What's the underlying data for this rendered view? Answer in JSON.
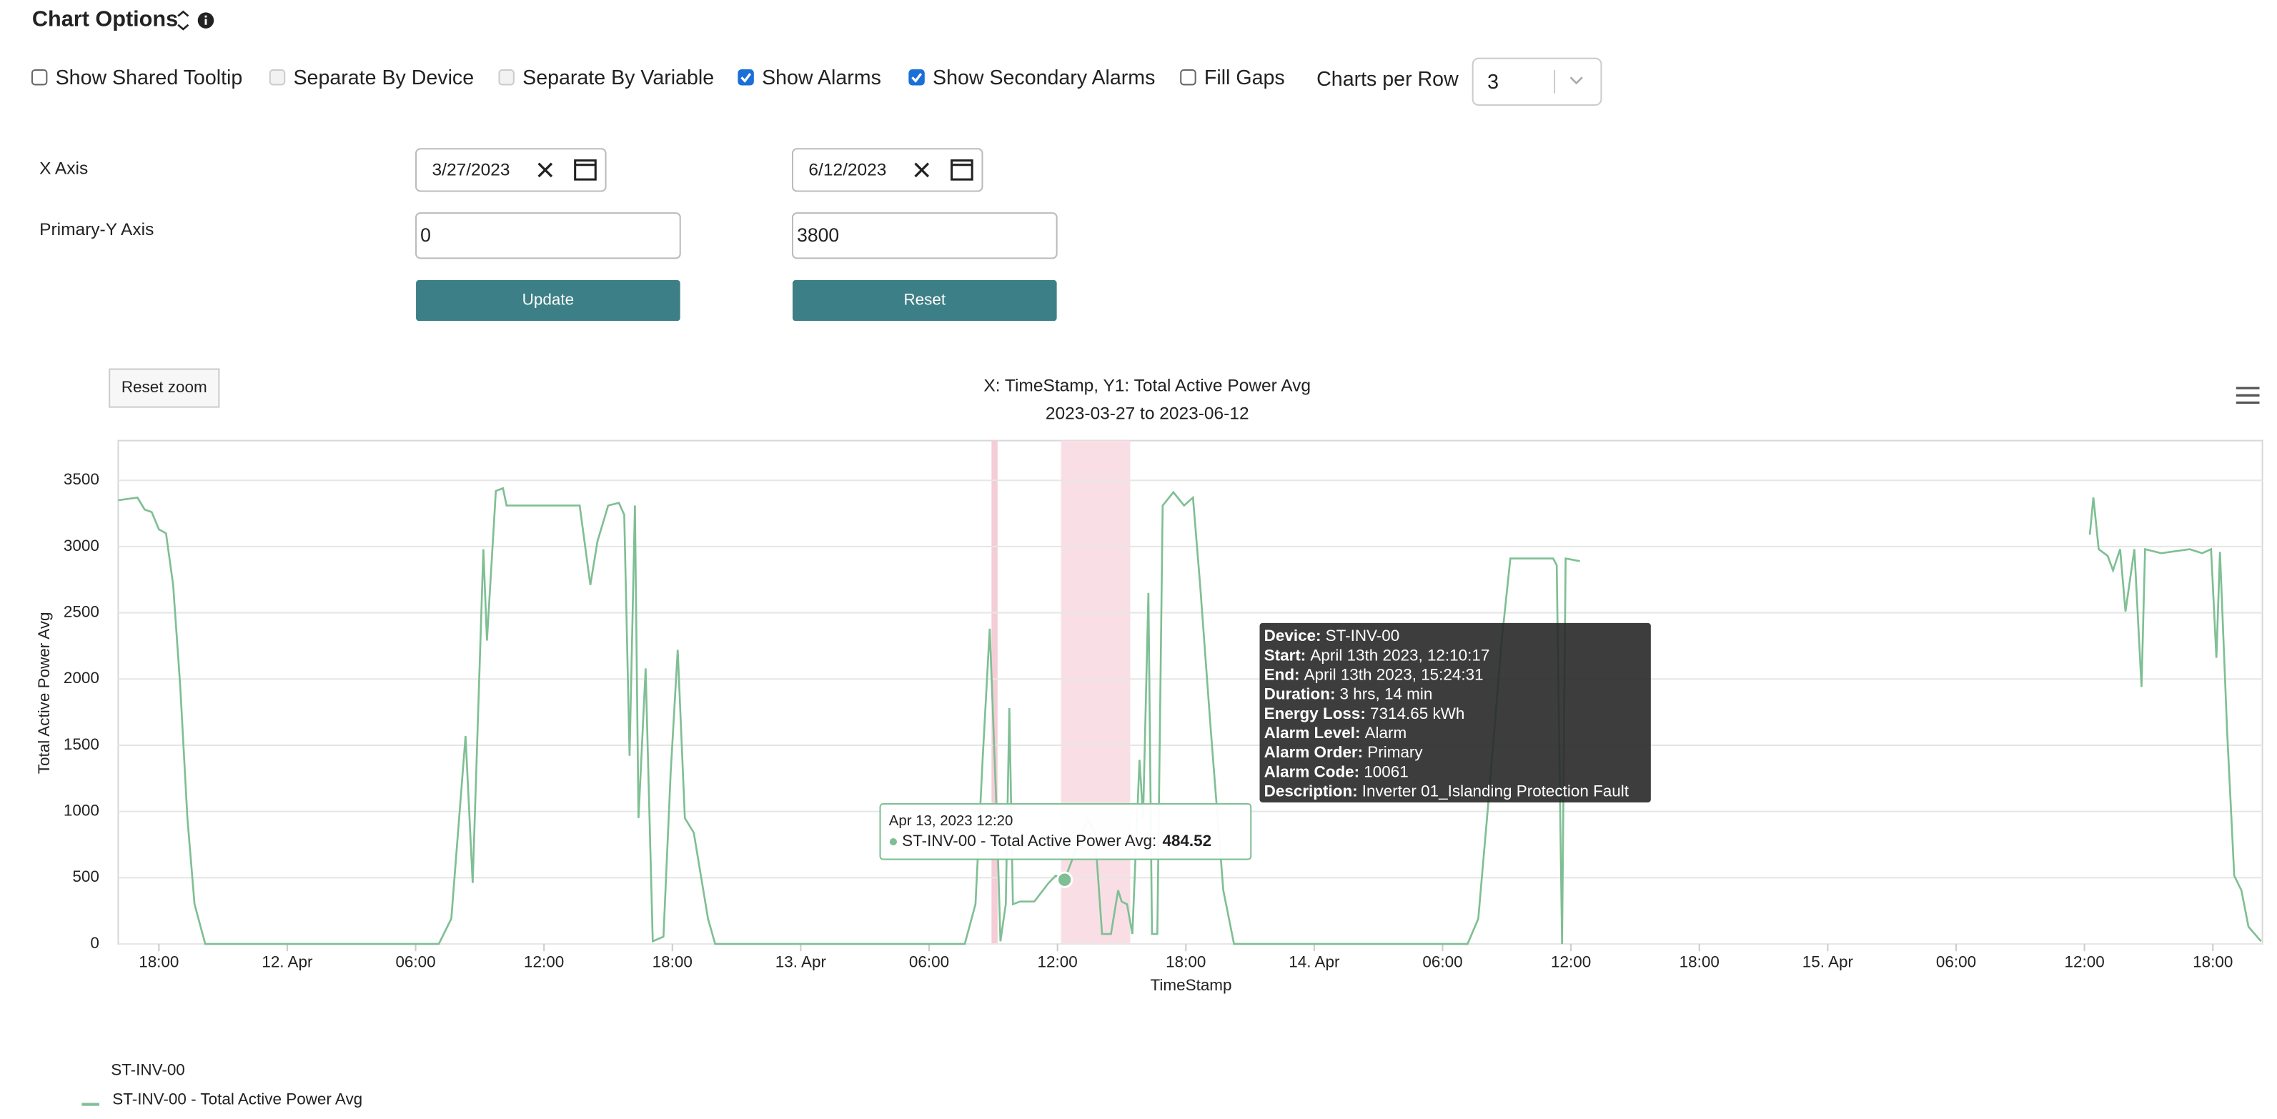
{
  "header": {
    "title": "Chart Options"
  },
  "options": [
    {
      "label": "Show Shared Tooltip",
      "checked": false,
      "enabled": true
    },
    {
      "label": "Separate By Device",
      "checked": false,
      "enabled": false
    },
    {
      "label": "Separate By Variable",
      "checked": false,
      "enabled": false
    },
    {
      "label": "Show Alarms",
      "checked": true,
      "enabled": true
    },
    {
      "label": "Show Secondary Alarms",
      "checked": true,
      "enabled": true
    },
    {
      "label": "Fill Gaps",
      "checked": false,
      "enabled": true
    }
  ],
  "charts_per_row": {
    "label": "Charts per Row",
    "value": "3"
  },
  "axis_form": {
    "x_label": "X Axis",
    "x_start": "3/27/2023",
    "x_end": "6/12/2023",
    "y_label": "Primary-Y Axis",
    "y_min": "0",
    "y_max": "3800",
    "update": "Update",
    "reset": "Reset"
  },
  "reset_zoom": "Reset zoom",
  "chart_data": {
    "type": "line",
    "title": "X: TimeStamp, Y1: Total Active Power Avg",
    "subtitle": "2023-03-27 to 2023-06-12",
    "x_label": "TimeStamp",
    "y_label": "Total Active Power Avg",
    "xlim": [
      "2023-04-11 16:06",
      "2023-04-15 20:19"
    ],
    "xticks": [
      {
        "value": "2023-04-11 18:00",
        "label": "18:00"
      },
      {
        "value": "2023-04-12 00:00",
        "label": "12. Apr"
      },
      {
        "value": "2023-04-12 06:00",
        "label": "06:00"
      },
      {
        "value": "2023-04-12 12:00",
        "label": "12:00"
      },
      {
        "value": "2023-04-12 18:00",
        "label": "18:00"
      },
      {
        "value": "2023-04-13 00:00",
        "label": "13. Apr"
      },
      {
        "value": "2023-04-13 06:00",
        "label": "06:00"
      },
      {
        "value": "2023-04-13 12:00",
        "label": "12:00"
      },
      {
        "value": "2023-04-13 18:00",
        "label": "18:00"
      },
      {
        "value": "2023-04-14 00:00",
        "label": "14. Apr"
      },
      {
        "value": "2023-04-14 06:00",
        "label": "06:00"
      },
      {
        "value": "2023-04-14 12:00",
        "label": "12:00"
      },
      {
        "value": "2023-04-14 18:00",
        "label": "18:00"
      },
      {
        "value": "2023-04-15 00:00",
        "label": "15. Apr"
      },
      {
        "value": "2023-04-15 06:00",
        "label": "06:00"
      },
      {
        "value": "2023-04-15 12:00",
        "label": "12:00"
      },
      {
        "value": "2023-04-15 18:00",
        "label": "18:00"
      }
    ],
    "ylim": [
      0,
      3800
    ],
    "yticks": [
      0,
      500,
      1000,
      1500,
      2000,
      2500,
      3000,
      3500
    ],
    "grid": true,
    "x": [
      "2023-04-11 16:06",
      "2023-04-11 17:00",
      "2023-04-11 17:20",
      "2023-04-11 17:40",
      "2023-04-11 18:00",
      "2023-04-11 18:20",
      "2023-04-11 18:40",
      "2023-04-11 19:00",
      "2023-04-11 19:20",
      "2023-04-11 19:40",
      "2023-04-11 20:10",
      "2023-04-12 07:05",
      "2023-04-12 07:40",
      "2023-04-12 08:20",
      "2023-04-12 08:40",
      "2023-04-12 09:10",
      "2023-04-12 09:20",
      "2023-04-12 09:45",
      "2023-04-12 10:05",
      "2023-04-12 10:15",
      "2023-04-12 13:40",
      "2023-04-12 14:10",
      "2023-04-12 14:30",
      "2023-04-12 15:00",
      "2023-04-12 15:30",
      "2023-04-12 15:45",
      "2023-04-12 16:00",
      "2023-04-12 16:15",
      "2023-04-12 16:25",
      "2023-04-12 16:45",
      "2023-04-12 17:05",
      "2023-04-12 17:35",
      "2023-04-12 17:55",
      "2023-04-12 18:15",
      "2023-04-12 18:35",
      "2023-04-12 19:00",
      "2023-04-12 19:40",
      "2023-04-12 20:00",
      "2023-04-13 07:40",
      "2023-04-13 08:10",
      "2023-04-13 08:30",
      "2023-04-13 08:50",
      "2023-04-13 09:10",
      "2023-04-13 09:20",
      "2023-04-13 09:35",
      "2023-04-13 09:45",
      "2023-04-13 09:55",
      "2023-04-13 10:15",
      "2023-04-13 10:55",
      "2023-04-13 11:35",
      "2023-04-13 11:55",
      "2023-04-13 12:20",
      "2023-04-13 12:55",
      "2023-04-13 13:25",
      "2023-04-13 13:45",
      "2023-04-13 14:05",
      "2023-04-13 14:30",
      "2023-04-13 14:50",
      "2023-04-13 15:00",
      "2023-04-13 15:15",
      "2023-04-13 15:30",
      "2023-04-13 15:50",
      "2023-04-13 16:00",
      "2023-04-13 16:15",
      "2023-04-13 16:25",
      "2023-04-13 16:40",
      "2023-04-13 16:55",
      "2023-04-13 17:25",
      "2023-04-13 17:55",
      "2023-04-13 18:20",
      "2023-04-13 18:40",
      "2023-04-13 19:10",
      "2023-04-13 19:45",
      "2023-04-13 20:15",
      "2023-04-14 07:10",
      "2023-04-14 07:40",
      "2023-04-14 08:10",
      "2023-04-14 08:45",
      "2023-04-14 09:10",
      "2023-04-14 11:10",
      "2023-04-14 11:20",
      "2023-04-14 11:35",
      "2023-04-14 11:45",
      "2023-04-14 12:25",
      "2023-04-15 00:00",
      "2023-04-15 12:15",
      "2023-04-15 12:25",
      "2023-04-15 12:40",
      "2023-04-15 13:05",
      "2023-04-15 13:20",
      "2023-04-15 13:40",
      "2023-04-15 13:55",
      "2023-04-15 14:20",
      "2023-04-15 14:40",
      "2023-04-15 14:50",
      "2023-04-15 15:35",
      "2023-04-15 16:55",
      "2023-04-15 17:30",
      "2023-04-15 17:55",
      "2023-04-15 18:10",
      "2023-04-15 18:20",
      "2023-04-15 18:40",
      "2023-04-15 19:00",
      "2023-04-15 19:20",
      "2023-04-15 19:40",
      "2023-04-15 20:15"
    ],
    "series": [
      {
        "name": "ST-INV-00 - Total Active Power Avg",
        "color": "#7fbf94",
        "values": [
          3350,
          3370,
          3280,
          3260,
          3130,
          3100,
          2710,
          1940,
          950,
          300,
          0,
          0,
          190,
          1570,
          460,
          2980,
          2290,
          3420,
          3440,
          3310,
          3310,
          2710,
          3040,
          3310,
          3330,
          3240,
          1420,
          3310,
          950,
          2080,
          20,
          55,
          1280,
          2220,
          950,
          840,
          190,
          0,
          0,
          300,
          1390,
          2380,
          950,
          20,
          300,
          1780,
          300,
          320,
          320,
          460,
          515,
          484.52,
          735,
          950,
          840,
          75,
          75,
          405,
          320,
          300,
          75,
          1390,
          950,
          2650,
          75,
          75,
          3310,
          3410,
          3310,
          3370,
          2710,
          1610,
          405,
          0,
          0,
          190,
          1120,
          2270,
          2910,
          2910,
          2860,
          0,
          2910,
          2890,
          null,
          3090,
          3370,
          2980,
          2930,
          2820,
          2980,
          2510,
          2980,
          1940,
          2980,
          2950,
          2980,
          2950,
          2980,
          2160,
          2960,
          1610,
          515,
          405,
          130,
          20
        ]
      }
    ],
    "alarms": [
      {
        "start": "2023-04-13 08:55",
        "end": "2023-04-13 09:12",
        "color": "#f5cdd6"
      },
      {
        "start": "2023-04-13 12:10",
        "end": "2023-04-13 15:24",
        "color": "#f9dfe5"
      }
    ],
    "tooltip": {
      "time": "Apr 13, 2023 12:20",
      "label": "ST-INV-00 - Total Active Power Avg:",
      "value": 484.52
    },
    "alarm_tooltip": [
      [
        "Device:",
        "ST-INV-00"
      ],
      [
        "Start:",
        "April 13th 2023, 12:10:17"
      ],
      [
        "End:",
        "April 13th 2023, 15:24:31"
      ],
      [
        "Duration:",
        "3 hrs, 14 min"
      ],
      [
        "Energy Loss:",
        "7314.65 kWh"
      ],
      [
        "Alarm Level:",
        "Alarm"
      ],
      [
        "Alarm Order:",
        "Primary"
      ],
      [
        "Alarm Code:",
        "10061"
      ],
      [
        "Description:",
        "Inverter 01_Islanding Protection Fault"
      ]
    ]
  },
  "legend": {
    "group": "ST-INV-00"
  }
}
